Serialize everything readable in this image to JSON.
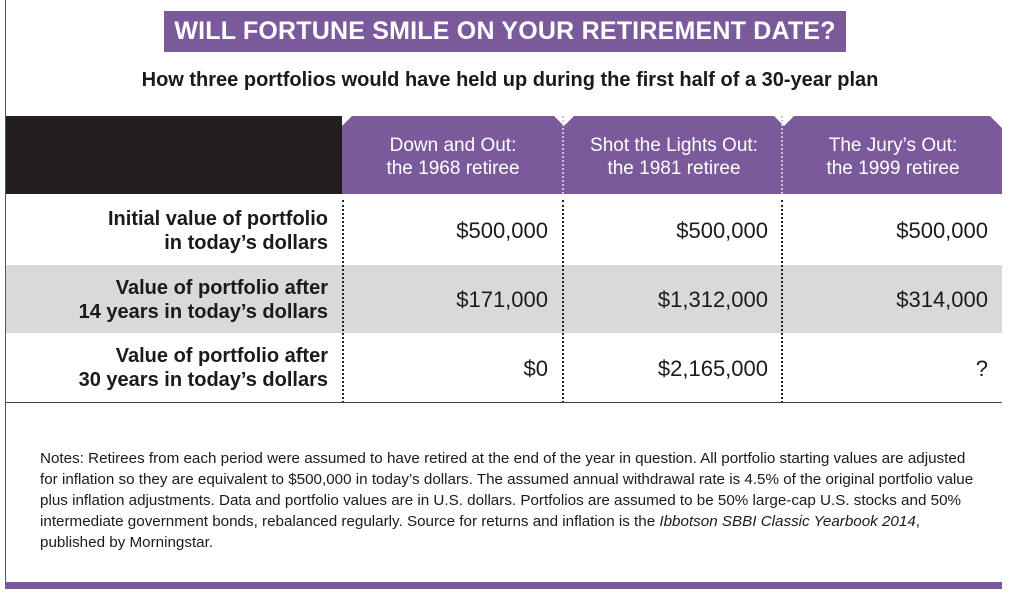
{
  "colors": {
    "accent_purple": "#7b5a9b",
    "dark_header": "#231f20",
    "row_shade": "#d9d9d9"
  },
  "title": "WILL FORTUNE SMILE ON YOUR RETIREMENT DATE?",
  "subtitle": "How three portfolios would have held up during the first half of a 30-year plan",
  "chart_data": {
    "type": "table",
    "columns": [
      {
        "line1": "Down and Out:",
        "line2": "the 1968 retiree"
      },
      {
        "line1": "Shot the Lights Out:",
        "line2": "the 1981 retiree"
      },
      {
        "line1": "The Jury’s Out:",
        "line2": "the 1999 retiree"
      }
    ],
    "rows": [
      {
        "line1": "Initial value of portfolio",
        "line2": "in today’s dollars",
        "values": [
          "$500,000",
          "$500,000",
          "$500,000"
        ]
      },
      {
        "line1": "Value of portfolio after",
        "line2": "14 years in today’s dollars",
        "values": [
          "$171,000",
          "$1,312,000",
          "$314,000"
        ]
      },
      {
        "line1": "Value of portfolio after",
        "line2": "30 years in today’s dollars",
        "values": [
          "$0",
          "$2,165,000",
          "?"
        ]
      }
    ]
  },
  "notes": {
    "before_source": "Notes: Retirees from each period were assumed to have retired at the end of the year in question. All portfolio starting values are adjusted for inflation so they are equivalent to $500,000 in today’s dollars. The assumed annual withdrawal rate is 4.5% of the original portfolio value plus inflation adjustments. Data and portfolio values are in U.S. dollars. Portfolios are assumed to be 50% large-cap U.S. stocks and 50% intermediate government bonds, rebalanced regularly. Source for returns and inflation is the ",
    "source_title": "Ibbotson SBBI Classic Yearbook 2014",
    "after_source": ", published by Morningstar."
  }
}
